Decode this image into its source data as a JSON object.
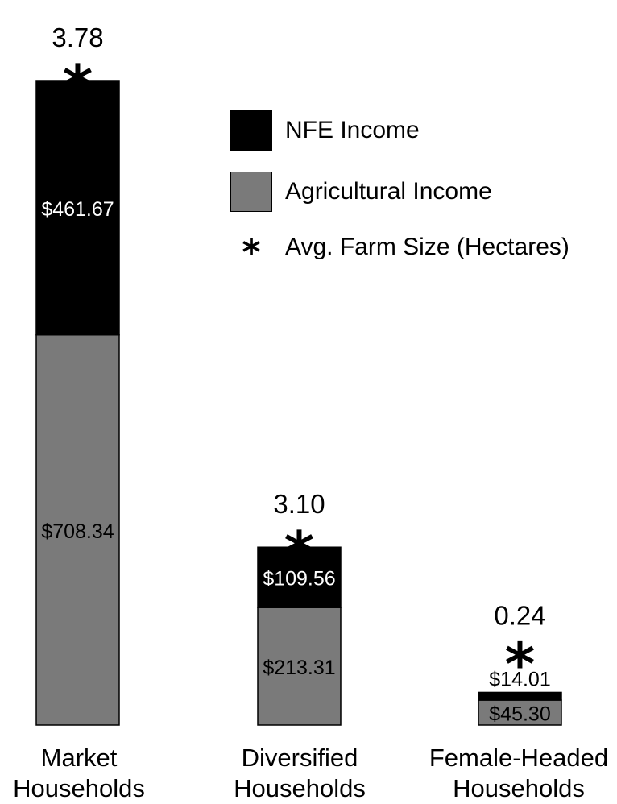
{
  "chart_data": {
    "type": "bar",
    "stacked": true,
    "categories": [
      "Market\nHouseholds",
      "Diversified\nHouseholds",
      "Female-Headed\nHouseholds"
    ],
    "series": [
      {
        "name": "Agricultural Income",
        "values": [
          708.34,
          213.31,
          45.3
        ],
        "labels": [
          "$708.34",
          "$213.31",
          "$45.30"
        ],
        "color": "#7a7a7a"
      },
      {
        "name": "NFE Income",
        "values": [
          461.67,
          109.56,
          14.01
        ],
        "labels": [
          "$461.67",
          "$109.56",
          "$14.01"
        ],
        "color": "#000000"
      }
    ],
    "markers": {
      "name": "Avg. Farm Size (Hectares)",
      "symbol": "*",
      "values": [
        3.78,
        3.1,
        0.24
      ],
      "labels": [
        "3.78",
        "3.10",
        "0.24"
      ]
    },
    "legend": {
      "placement": "top-right",
      "items": [
        {
          "label": "NFE Income",
          "kind": "swatch",
          "color": "#000000"
        },
        {
          "label": "Agricultural Income",
          "kind": "swatch",
          "color": "#7a7a7a"
        },
        {
          "label": "Avg. Farm Size (Hectares)",
          "kind": "symbol",
          "symbol": "*"
        }
      ]
    },
    "ylim": [
      0,
      1170.01
    ],
    "axes_visible": false,
    "grid": false
  }
}
